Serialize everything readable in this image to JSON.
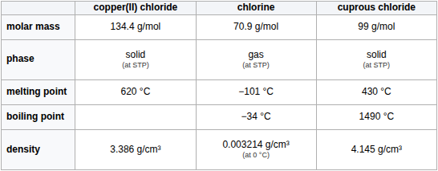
{
  "chart_data": {
    "type": "table",
    "columns": [
      "copper(II) chloride",
      "chlorine",
      "cuprous chloride"
    ],
    "rows": [
      {
        "label": "molar mass",
        "cells": [
          "134.4 g/mol",
          "70.9 g/mol",
          "99 g/mol"
        ]
      },
      {
        "label": "phase",
        "cells": [
          "solid",
          "gas",
          "solid"
        ],
        "notes": [
          "(at STP)",
          "(at STP)",
          "(at STP)"
        ]
      },
      {
        "label": "melting point",
        "cells": [
          "620 °C",
          "−101 °C",
          "430 °C"
        ]
      },
      {
        "label": "boiling point",
        "cells": [
          null,
          "−34 °C",
          "1490 °C"
        ]
      },
      {
        "label": "density",
        "cells": [
          "3.386 g/cm³",
          "0.003214 g/cm³",
          "4.145 g/cm³"
        ],
        "notes": [
          null,
          "(at 0 °C)",
          null
        ]
      }
    ]
  }
}
